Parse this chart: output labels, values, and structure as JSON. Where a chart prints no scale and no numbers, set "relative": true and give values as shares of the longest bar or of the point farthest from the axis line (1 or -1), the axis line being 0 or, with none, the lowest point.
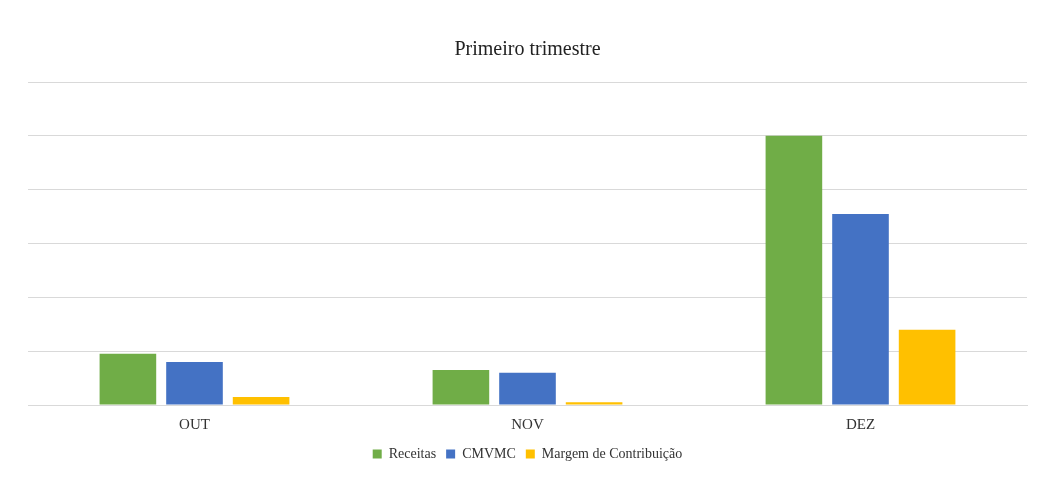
{
  "chart_data": {
    "type": "bar",
    "title": "Primeiro trimestre",
    "categories": [
      "OUT",
      "NOV",
      "DEZ"
    ],
    "relative": true,
    "grid": "y",
    "legend": "bottom",
    "series": [
      {
        "name": "Receitas",
        "color": "#70ad47",
        "values": [
          0.19,
          0.13,
          1.0
        ]
      },
      {
        "name": "CMVMC",
        "color": "#4472c4",
        "values": [
          0.16,
          0.12,
          0.71
        ]
      },
      {
        "name": "Margem de Contribuição",
        "color": "#ffc000",
        "values": [
          0.03,
          0.01,
          0.28
        ]
      }
    ]
  }
}
